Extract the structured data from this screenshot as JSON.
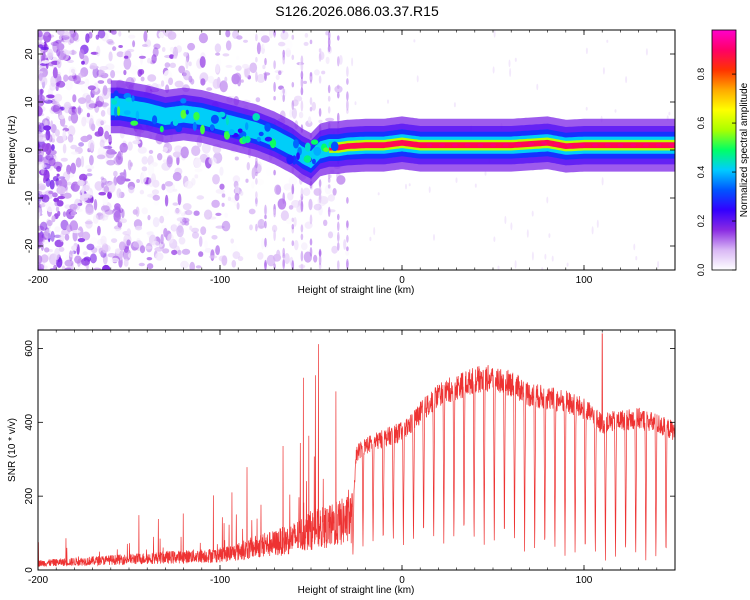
{
  "title": "S126.2026.086.03.37.R15",
  "chart_data": [
    {
      "type": "heatmap",
      "title": "S126.2026.086.03.37.R15",
      "xlabel": "Height of straight line (km)",
      "ylabel": "Frequency (Hz)",
      "xlim": [
        -200,
        150
      ],
      "ylim": [
        -25,
        25
      ],
      "x_ticks": [
        -200,
        -100,
        0,
        100
      ],
      "y_ticks": [
        -20,
        -10,
        0,
        10,
        20
      ],
      "x_tick_labels": [
        "-200",
        "-100",
        "0",
        "100"
      ],
      "y_tick_labels": [
        "-20",
        "-10",
        "0",
        "10",
        "20"
      ],
      "ridge": {
        "description": "spectral line frequency vs height",
        "x": [
          -155,
          -140,
          -130,
          -120,
          -110,
          -100,
          -90,
          -80,
          -70,
          -60,
          -55,
          -50,
          -45,
          -40,
          -35,
          -30,
          -20,
          -10,
          0,
          10,
          30,
          60,
          80,
          90,
          100,
          120,
          150
        ],
        "y": [
          9,
          8,
          7,
          7.5,
          7,
          6,
          5,
          4,
          2.5,
          0.5,
          -1,
          -2,
          0,
          0.5,
          0.5,
          0.8,
          1,
          1,
          1.5,
          1,
          1,
          1,
          1.5,
          0.8,
          1,
          1,
          1
        ]
      },
      "colorbar": {
        "label": "Normalized spectral amplitude",
        "ticks": [
          0.0,
          0.2,
          0.4,
          0.6,
          0.8
        ],
        "tick_labels": [
          "0.0",
          "0.2",
          "0.4",
          "0.6",
          "0.8"
        ],
        "range": [
          0,
          0.98
        ],
        "colors": [
          "#ffffff",
          "#d9b8f5",
          "#8a2be2",
          "#3300ff",
          "#0055ff",
          "#00ccff",
          "#00ff66",
          "#aaff00",
          "#ffff00",
          "#ffaa00",
          "#ff3300",
          "#ff0066",
          "#ff00cc"
        ]
      }
    },
    {
      "type": "line",
      "xlabel": "Height of straight line (km)",
      "ylabel": "SNR (10 * v/v)",
      "xlim": [
        -200,
        150
      ],
      "ylim": [
        0,
        650
      ],
      "x_ticks": [
        -200,
        -100,
        0,
        100
      ],
      "y_ticks": [
        0,
        200,
        400,
        600
      ],
      "x_tick_labels": [
        "-200",
        "-100",
        "0",
        "100"
      ],
      "y_tick_labels": [
        "0",
        "200",
        "400",
        "600"
      ],
      "color": "#ee3333",
      "series": [
        {
          "name": "SNR",
          "x": [
            -200,
            -180,
            -160,
            -140,
            -120,
            -100,
            -90,
            -80,
            -70,
            -60,
            -50,
            -40,
            -30,
            -27,
            -25,
            -20,
            -15,
            -10,
            -5,
            0,
            5,
            10,
            20,
            30,
            40,
            50,
            60,
            70,
            80,
            90,
            100,
            110,
            120,
            130,
            140,
            150
          ],
          "y": [
            20,
            25,
            30,
            35,
            40,
            45,
            55,
            70,
            80,
            95,
            120,
            130,
            150,
            160,
            320,
            340,
            350,
            360,
            370,
            380,
            400,
            430,
            480,
            500,
            520,
            525,
            510,
            480,
            470,
            460,
            440,
            400,
            410,
            415,
            400,
            380
          ],
          "spike": {
            "x": 110,
            "y": 640
          }
        }
      ]
    }
  ]
}
